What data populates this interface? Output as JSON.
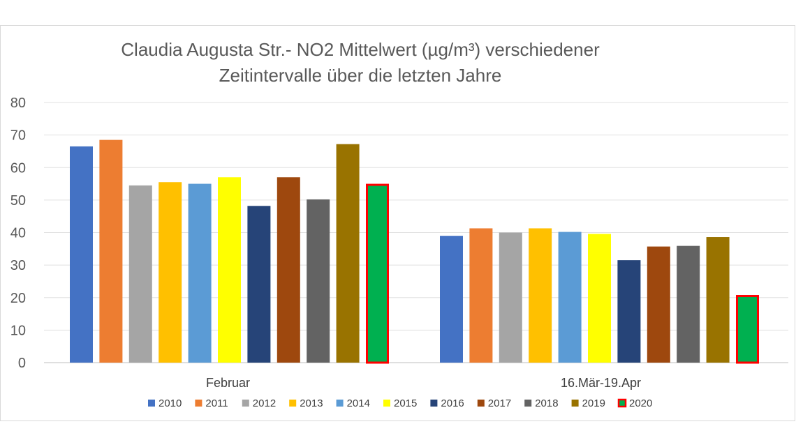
{
  "chart_data": {
    "type": "bar",
    "title_lines": [
      "Claudia Augusta Str.- NO2 Mittelwert (µg/m³) verschiedener",
      "Zeitintervalle über die letzten Jahre"
    ],
    "categories": [
      "Februar",
      "16.Mär-19.Apr"
    ],
    "ylim": [
      0,
      80
    ],
    "yticks": [
      0,
      10,
      20,
      30,
      40,
      50,
      60,
      70,
      80
    ],
    "grid": true,
    "legend_position": "bottom",
    "series": [
      {
        "name": "2010",
        "color": "#4472C4",
        "values": [
          66.5,
          39.0
        ]
      },
      {
        "name": "2011",
        "color": "#ED7D31",
        "values": [
          68.5,
          41.3
        ]
      },
      {
        "name": "2012",
        "color": "#A5A5A5",
        "values": [
          54.5,
          40.0
        ]
      },
      {
        "name": "2013",
        "color": "#FFC000",
        "values": [
          55.5,
          41.3
        ]
      },
      {
        "name": "2014",
        "color": "#5B9BD5",
        "values": [
          55.0,
          40.2
        ]
      },
      {
        "name": "2015",
        "color": "#FFFF00",
        "values": [
          57.0,
          39.6
        ]
      },
      {
        "name": "2016",
        "color": "#264478",
        "values": [
          48.2,
          31.5
        ]
      },
      {
        "name": "2017",
        "color": "#9E480E",
        "values": [
          57.0,
          35.7
        ]
      },
      {
        "name": "2018",
        "color": "#636363",
        "values": [
          50.2,
          35.9
        ]
      },
      {
        "name": "2019",
        "color": "#997300",
        "values": [
          67.2,
          38.6
        ]
      },
      {
        "name": "2020",
        "color": "#00B050",
        "outline": "#FF0000",
        "values": [
          55.0,
          20.8
        ]
      }
    ]
  }
}
